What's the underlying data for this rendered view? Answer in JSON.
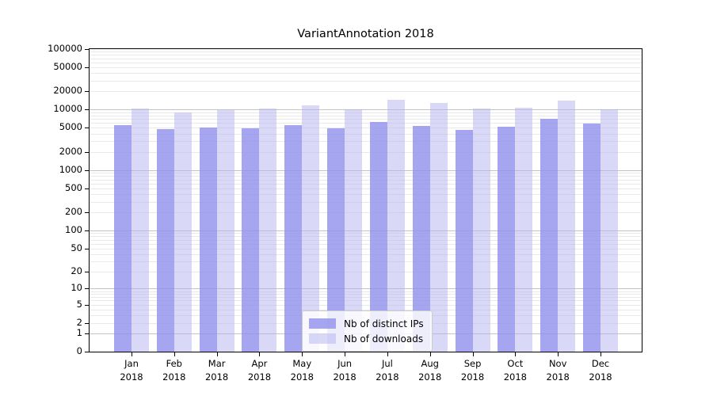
{
  "title": "VariantAnnotation 2018",
  "colors": {
    "ips_bar": "rgba(144,144,236,0.8)",
    "downloads_bar": "rgba(179,179,239,0.5)",
    "major_gridline": "#c3c3c3",
    "minor_gridline": "#e9e9e9",
    "axis_frame": "#000000",
    "legend_border": "#cccccc",
    "legend_background": "rgba(255,255,255,0.8)"
  },
  "legend": {
    "items": [
      {
        "label": "Nb of distinct IPs",
        "color_key": "ips_bar"
      },
      {
        "label": "Nb of downloads",
        "color_key": "downloads_bar"
      }
    ]
  },
  "chart_data": {
    "type": "bar",
    "title": "VariantAnnotation 2018",
    "categories": [
      "Jan 2018",
      "Feb 2018",
      "Mar 2018",
      "Apr 2018",
      "May 2018",
      "Jun 2018",
      "Jul 2018",
      "Aug 2018",
      "Sep 2018",
      "Oct 2018",
      "Nov 2018",
      "Dec 2018"
    ],
    "series": [
      {
        "name": "Nb of distinct IPs",
        "color_key": "ips_bar",
        "values": [
          5500,
          4800,
          5000,
          4900,
          5500,
          4900,
          6200,
          5300,
          4600,
          5200,
          7000,
          5800
        ]
      },
      {
        "name": "Nb of downloads",
        "color_key": "downloads_bar",
        "values": [
          10400,
          8900,
          9700,
          10500,
          11600,
          10100,
          14500,
          13000,
          10400,
          10600,
          14200,
          10200
        ]
      }
    ],
    "xlabel": "",
    "ylabel": "",
    "y_scale": "log10(value+1)",
    "ylim": [
      0,
      100000
    ],
    "y_ticks": [
      0,
      1,
      2,
      5,
      10,
      20,
      50,
      100,
      200,
      500,
      1000,
      2000,
      5000,
      10000,
      20000,
      50000,
      100000
    ],
    "grid": "horizontal log gridlines, minor 2-9 per decade, major at decades",
    "legend_position": "lower center inside plot"
  }
}
